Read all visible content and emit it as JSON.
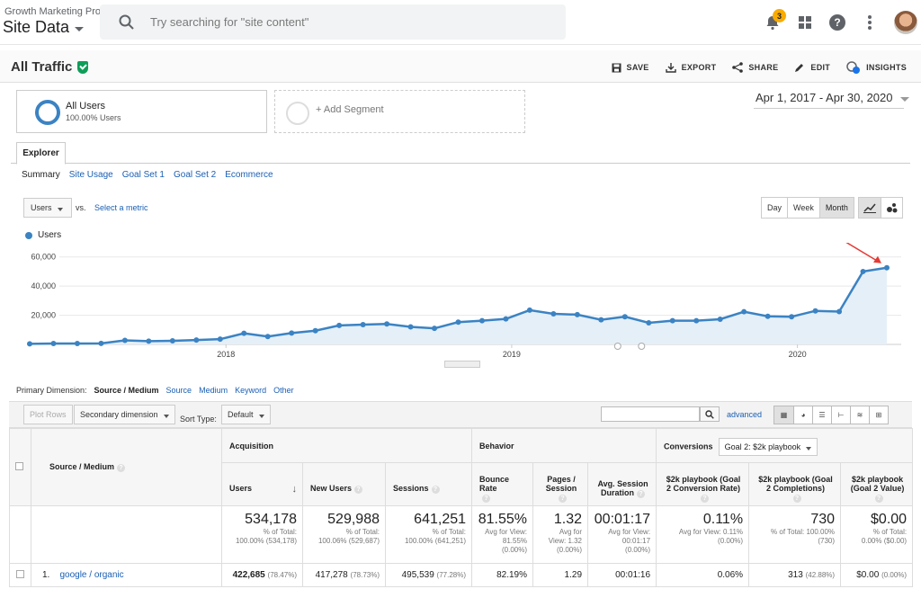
{
  "topbar": {
    "account": "Growth Marketing Pro",
    "property": "Site Data",
    "search_placeholder": "Try searching for \"site content\"",
    "notification_count": "3",
    "icons": [
      "bell-icon",
      "apps-grid-icon",
      "help-icon",
      "more-vert-icon",
      "avatar"
    ]
  },
  "report": {
    "title": "All Traffic",
    "actions": [
      "SAVE",
      "EXPORT",
      "SHARE",
      "EDIT",
      "INSIGHTS"
    ],
    "insights_badge": "5"
  },
  "segments": {
    "active_name": "All Users",
    "active_pct": "100.00% Users",
    "add_label": "+ Add Segment"
  },
  "date_range": "Apr 1, 2017 - Apr 30, 2020",
  "tabs": {
    "explorer": "Explorer",
    "subtabs": [
      "Summary",
      "Site Usage",
      "Goal Set 1",
      "Goal Set 2",
      "Ecommerce"
    ]
  },
  "chart_controls": {
    "metric": "Users",
    "vs": "vs.",
    "select_metric": "Select a metric",
    "granularity": [
      "Day",
      "Week",
      "Month"
    ],
    "active_granularity": "Month"
  },
  "chart_data": {
    "type": "line",
    "series": [
      {
        "name": "Users",
        "color": "#3b83c3",
        "values": [
          400,
          600,
          600,
          700,
          2800,
          2200,
          2500,
          3000,
          3600,
          7600,
          5400,
          7800,
          9400,
          13000,
          13600,
          14000,
          12000,
          11000,
          15300,
          16300,
          17500,
          23500,
          21000,
          20400,
          16900,
          19000,
          14800,
          16300,
          16300,
          17300,
          22400,
          19300,
          19000,
          23000,
          22500,
          50000,
          52600
        ]
      }
    ],
    "x_tick_labels": [
      "2018",
      "2019",
      "2020"
    ],
    "y_tick_labels": [
      "20,000",
      "40,000",
      "60,000"
    ],
    "ylim": [
      0,
      66000
    ],
    "grid": true,
    "annotation": "red arrow pointing at last point"
  },
  "table_controls": {
    "primary_dimension_label": "Primary Dimension:",
    "primary_dimension": "Source / Medium",
    "dimension_links": [
      "Source",
      "Medium",
      "Keyword",
      "Other"
    ],
    "plot_rows": "Plot Rows",
    "secondary_dimension": "Secondary dimension",
    "sort_type_label": "Sort Type:",
    "sort_type": "Default",
    "advanced": "advanced"
  },
  "table": {
    "dim_header": "Source / Medium",
    "groups": {
      "acquisition": "Acquisition",
      "behavior": "Behavior",
      "conversions": "Conversions",
      "goal_select": "Goal 2: $2k playbook"
    },
    "columns": [
      "Users",
      "New Users",
      "Sessions",
      "Bounce Rate",
      "Pages / Session",
      "Avg. Session Duration",
      "$2k playbook (Goal 2 Conversion Rate)",
      "$2k playbook (Goal 2 Completions)",
      "$2k playbook (Goal 2 Value)"
    ],
    "totals": [
      {
        "value": "534,178",
        "sub1": "% of Total:",
        "sub2": "100.00% (534,178)"
      },
      {
        "value": "529,988",
        "sub1": "% of Total:",
        "sub2": "100.06% (529,687)"
      },
      {
        "value": "641,251",
        "sub1": "% of Total:",
        "sub2": "100.00% (641,251)"
      },
      {
        "value": "81.55%",
        "sub1": "Avg for View:",
        "sub2": "81.55%",
        "sub3": "(0.00%)"
      },
      {
        "value": "1.32",
        "sub1": "Avg for",
        "sub2": "View: 1.32",
        "sub3": "(0.00%)"
      },
      {
        "value": "00:01:17",
        "sub1": "Avg for View:",
        "sub2": "00:01:17",
        "sub3": "(0.00%)"
      },
      {
        "value": "0.11%",
        "sub1": "Avg for View: 0.11%",
        "sub2": "(0.00%)"
      },
      {
        "value": "730",
        "sub1": "% of Total: 100.00%",
        "sub2": "(730)"
      },
      {
        "value": "$0.00",
        "sub1": "% of Total:",
        "sub2": "0.00% ($0.00)"
      }
    ],
    "rows": [
      {
        "index": "1.",
        "source": "google / organic",
        "users": "422,685",
        "users_pct": "(78.47%)",
        "new_users": "417,278",
        "new_users_pct": "(78.73%)",
        "sessions": "495,539",
        "sessions_pct": "(77.28%)",
        "bounce": "82.19%",
        "pages": "1.29",
        "duration": "00:01:16",
        "conv_rate": "0.06%",
        "completions": "313",
        "completions_pct": "(42.88%)",
        "value": "$0.00",
        "value_pct": "(0.00%)"
      }
    ]
  }
}
